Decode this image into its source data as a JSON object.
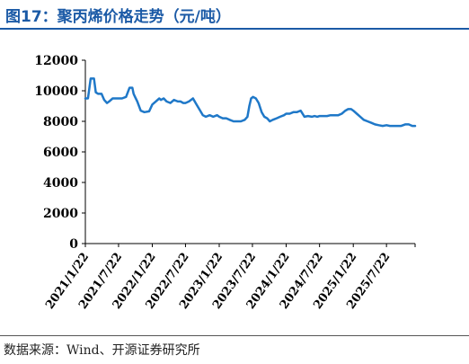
{
  "figure": {
    "title": "图17：聚丙烯价格走势（元/吨）",
    "source": "数据来源：Wind、开源证券研究所"
  },
  "colors": {
    "title": "#1b5aa6",
    "line": "#1f78c8",
    "axis": "#000000"
  },
  "chart_data": {
    "type": "line",
    "title": "",
    "xlabel": "",
    "ylabel": "",
    "ylim": [
      0,
      12000
    ],
    "yticks": [
      0,
      2000,
      4000,
      6000,
      8000,
      10000,
      12000
    ],
    "ytick_labels": [
      "0",
      "2000",
      "4000",
      "6000",
      "8000",
      "10000",
      "12000"
    ],
    "xtick_labels": [
      "2021/1/22",
      "2021/7/22",
      "2022/1/22",
      "2022/7/22",
      "2023/1/22",
      "2023/7/22",
      "2024/1/22",
      "2024/7/22",
      "2025/1/22",
      "2025/7/22"
    ],
    "xlim": [
      "2021-01-22",
      "2025-12-25"
    ],
    "grid": false,
    "legend": "none",
    "series": [
      {
        "name": "",
        "x": [
          "2021-01-22",
          "2021-02-05",
          "2021-02-20",
          "2021-03-01",
          "2021-03-10",
          "2021-03-20",
          "2021-04-01",
          "2021-04-20",
          "2021-05-05",
          "2021-05-20",
          "2021-06-01",
          "2021-06-20",
          "2021-07-05",
          "2021-07-22",
          "2021-08-10",
          "2021-09-01",
          "2021-09-20",
          "2021-10-05",
          "2021-10-12",
          "2021-10-20",
          "2021-11-01",
          "2021-11-20",
          "2021-12-10",
          "2022-01-05",
          "2022-01-22",
          "2022-02-10",
          "2022-03-01",
          "2022-03-10",
          "2022-03-25",
          "2022-04-10",
          "2022-05-01",
          "2022-05-20",
          "2022-06-10",
          "2022-06-25",
          "2022-07-10",
          "2022-07-22",
          "2022-08-10",
          "2022-09-01",
          "2022-09-20",
          "2022-10-10",
          "2022-10-25",
          "2022-11-10",
          "2022-12-01",
          "2022-12-20",
          "2023-01-10",
          "2023-01-22",
          "2023-02-10",
          "2023-03-01",
          "2023-03-20",
          "2023-04-10",
          "2023-05-01",
          "2023-05-20",
          "2023-06-10",
          "2023-06-25",
          "2023-07-05",
          "2023-07-15",
          "2023-07-25",
          "2023-08-10",
          "2023-08-25",
          "2023-09-10",
          "2023-09-25",
          "2023-10-10",
          "2023-10-25",
          "2023-11-10",
          "2023-12-01",
          "2023-12-20",
          "2024-01-10",
          "2024-01-22",
          "2024-02-10",
          "2024-03-01",
          "2024-03-20",
          "2024-04-10",
          "2024-05-01",
          "2024-05-20",
          "2024-06-10",
          "2024-06-25",
          "2024-07-10",
          "2024-07-22",
          "2024-08-10",
          "2024-09-01",
          "2024-09-20",
          "2024-10-10",
          "2024-11-01",
          "2024-11-20",
          "2024-12-10",
          "2024-12-25",
          "2025-01-10",
          "2025-01-22",
          "2025-02-10",
          "2025-03-01",
          "2025-03-20",
          "2025-04-10",
          "2025-05-01",
          "2025-05-20",
          "2025-06-10",
          "2025-07-01",
          "2025-07-22",
          "2025-08-10",
          "2025-09-01",
          "2025-09-20",
          "2025-10-10",
          "2025-11-01",
          "2025-11-20",
          "2025-12-10",
          "2025-12-25"
        ],
        "y": [
          9500,
          9500,
          10800,
          10800,
          10800,
          9900,
          9800,
          9800,
          9400,
          9200,
          9300,
          9500,
          9500,
          9500,
          9500,
          9600,
          10200,
          10200,
          9800,
          9600,
          9300,
          8700,
          8600,
          8650,
          9100,
          9300,
          9500,
          9400,
          9500,
          9300,
          9200,
          9400,
          9300,
          9300,
          9200,
          9200,
          9300,
          9500,
          9100,
          8700,
          8400,
          8300,
          8400,
          8300,
          8400,
          8300,
          8200,
          8200,
          8100,
          8000,
          8000,
          8000,
          8100,
          8300,
          9000,
          9500,
          9600,
          9500,
          9200,
          8600,
          8300,
          8200,
          8000,
          8100,
          8200,
          8300,
          8400,
          8500,
          8500,
          8600,
          8600,
          8700,
          8300,
          8350,
          8300,
          8350,
          8300,
          8350,
          8350,
          8350,
          8400,
          8400,
          8400,
          8500,
          8700,
          8800,
          8800,
          8700,
          8500,
          8300,
          8100,
          8000,
          7900,
          7800,
          7750,
          7700,
          7750,
          7700,
          7700,
          7700,
          7700,
          7800,
          7800,
          7700,
          7700
        ]
      }
    ]
  }
}
